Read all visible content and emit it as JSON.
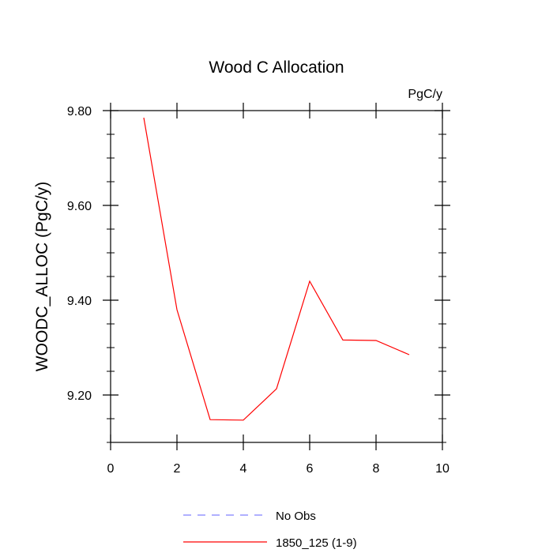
{
  "chart_data": {
    "type": "line",
    "title": "Wood C Allocation",
    "units_label": "PgC/y",
    "ylabel": "WOODC_ALLOC  (PgC/y)",
    "xlabel": "",
    "xlim": [
      0,
      10
    ],
    "ylim": [
      9.1,
      9.8
    ],
    "x_ticks": [
      0,
      2,
      4,
      6,
      8,
      10
    ],
    "x_tick_labels": [
      "0",
      "2",
      "4",
      "6",
      "8",
      "10"
    ],
    "y_ticks": [
      9.2,
      9.4,
      9.6,
      9.8
    ],
    "y_tick_labels": [
      "9.20",
      "9.40",
      "9.60",
      "9.80"
    ],
    "grid": false,
    "legend_position": "bottom",
    "series": [
      {
        "name": "1850_125 (1-9)",
        "color": "#ff0000",
        "dash": "solid",
        "x": [
          1,
          2,
          3,
          4,
          5,
          6,
          7,
          8,
          9
        ],
        "y": [
          9.785,
          9.38,
          9.148,
          9.147,
          9.213,
          9.44,
          9.316,
          9.315,
          9.285
        ]
      }
    ],
    "legend": [
      {
        "label": "No Obs",
        "color": "#8080ff",
        "dash": "dashed"
      },
      {
        "label": "1850_125 (1-9)",
        "color": "#ff0000",
        "dash": "solid"
      }
    ]
  }
}
